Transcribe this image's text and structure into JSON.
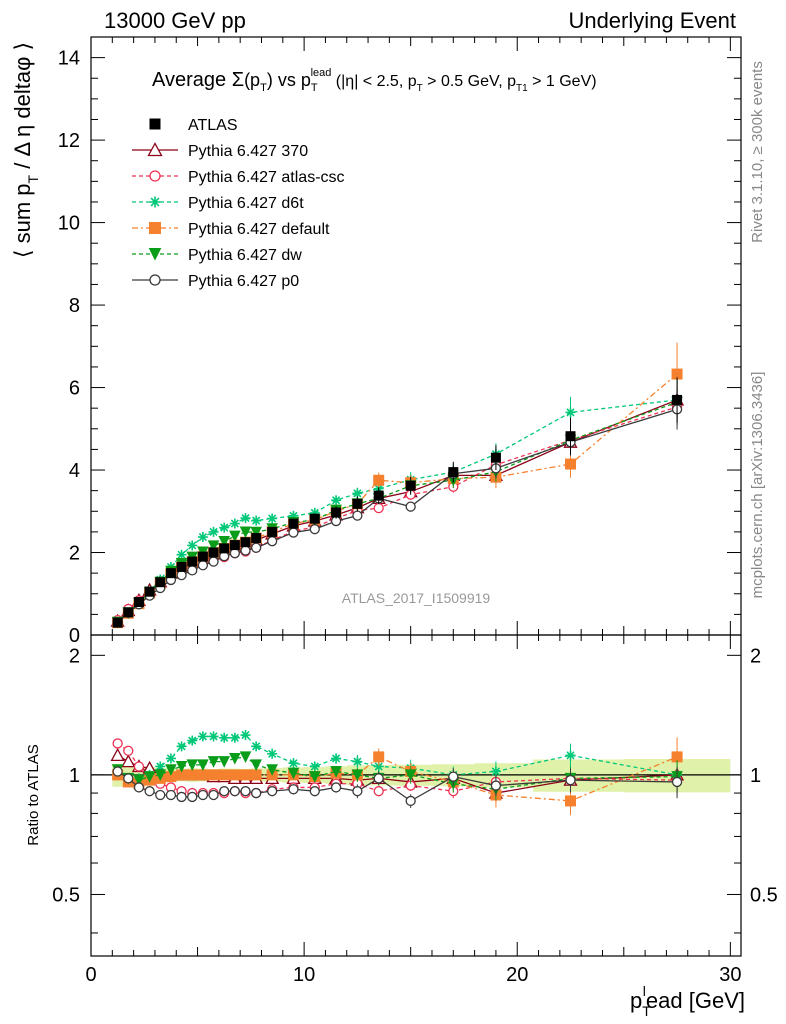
{
  "header": {
    "left": "13000 GeV pp",
    "right": "Underlying Event"
  },
  "side_labels": {
    "rivet": "Rivet 3.1.10, ≥ 300k events",
    "mcplots": "mcplots.cern.ch [arXiv:1306.3436]"
  },
  "chart_data": {
    "type": "line",
    "title": "Average Σ(p_T) vs p_T^lead (|η| < 2.5, p_T > 0.5 GeV, p_T1 > 1 GeV)",
    "title_parts": {
      "pre": "Average ",
      "sigma": "Σ",
      "paren": "(p",
      "sub_T": "T",
      "close": ")",
      "vs": " vs p",
      "sup_lead": "lead",
      "rest1": " (|η| < 2.5, p",
      "rest2": " > 0.5 GeV, p",
      "sub_T1": "T1",
      "rest3": " > 1 GeV)"
    },
    "watermark": "ATLAS_2017_I1509919",
    "xlabel": "p_T^lead [GeV]",
    "xlabel_parts": {
      "p": "p",
      "sub": "T",
      "sup": "l",
      "rest": "ead [GeV]"
    },
    "ylabel": "⟨ sum p_T / Δη deltaφ ⟩",
    "ylabel_parts": {
      "open": "⟨ sum p",
      "sub": "T",
      "rest": " / Δ η deltaφ ⟩"
    },
    "ratio_ylabel": "Ratio to ATLAS",
    "xlim": [
      0,
      30.5
    ],
    "ylim": [
      0,
      14.5
    ],
    "ratio_ylim": [
      0.35,
      2.25
    ],
    "x_ticks": [
      "0",
      "10",
      "20",
      "30"
    ],
    "y_ticks": [
      "0",
      "2",
      "4",
      "6",
      "8",
      "10",
      "12",
      "14"
    ],
    "ratio_ticks": [
      "0.5",
      "1",
      "2"
    ],
    "legend_position": "top-left",
    "x": [
      1.25,
      1.75,
      2.25,
      2.75,
      3.25,
      3.75,
      4.25,
      4.75,
      5.25,
      5.75,
      6.25,
      6.75,
      7.25,
      7.75,
      8.5,
      9.5,
      10.5,
      11.5,
      12.5,
      13.5,
      15.0,
      17.0,
      19.0,
      22.5,
      27.5
    ],
    "data_series": {
      "name": "ATLAS",
      "values": [
        0.3,
        0.55,
        0.8,
        1.05,
        1.28,
        1.5,
        1.65,
        1.78,
        1.9,
        2.0,
        2.1,
        2.18,
        2.25,
        2.35,
        2.5,
        2.7,
        2.82,
        2.97,
        3.18,
        3.38,
        3.62,
        3.95,
        4.3,
        4.82,
        5.7
      ],
      "err": [
        0.02,
        0.03,
        0.04,
        0.05,
        0.05,
        0.06,
        0.06,
        0.07,
        0.07,
        0.07,
        0.08,
        0.08,
        0.08,
        0.09,
        0.1,
        0.12,
        0.13,
        0.15,
        0.18,
        0.2,
        0.22,
        0.25,
        0.3,
        0.45,
        0.55
      ]
    },
    "series": [
      {
        "name": "Pythia 6.427 370",
        "color": "#8b0017",
        "marker": "triangle-open",
        "dash": "",
        "ratio": [
          1.12,
          1.08,
          1.05,
          1.04,
          1.01,
          1.0,
          1.0,
          1.0,
          1.0,
          0.99,
          0.99,
          0.98,
          0.98,
          0.98,
          0.98,
          0.98,
          0.98,
          0.98,
          0.97,
          0.98,
          0.96,
          0.98,
          0.9,
          0.97,
          1.0
        ],
        "err": [
          0.02,
          0.02,
          0.02,
          0.02,
          0.02,
          0.02,
          0.02,
          0.02,
          0.02,
          0.02,
          0.02,
          0.02,
          0.02,
          0.02,
          0.02,
          0.02,
          0.03,
          0.03,
          0.03,
          0.03,
          0.03,
          0.04,
          0.05,
          0.06,
          0.08
        ]
      },
      {
        "name": "Pythia 6.427 atlas-csc",
        "color": "#ee3355",
        "marker": "circle-open",
        "dash": "4,3",
        "ratio": [
          1.2,
          1.15,
          1.05,
          0.97,
          0.95,
          0.93,
          0.91,
          0.9,
          0.9,
          0.9,
          0.9,
          0.91,
          0.9,
          0.9,
          0.92,
          0.93,
          0.93,
          0.95,
          0.95,
          0.91,
          0.94,
          0.91,
          0.96,
          0.98,
          0.97
        ],
        "err": [
          0.02,
          0.02,
          0.02,
          0.02,
          0.02,
          0.02,
          0.02,
          0.02,
          0.02,
          0.02,
          0.02,
          0.02,
          0.02,
          0.02,
          0.02,
          0.02,
          0.03,
          0.03,
          0.03,
          0.03,
          0.03,
          0.04,
          0.05,
          0.06,
          0.08
        ]
      },
      {
        "name": "Pythia 6.427 d6t",
        "color": "#00c878",
        "marker": "star",
        "dash": "4,3",
        "ratio": [
          1.0,
          0.97,
          0.98,
          1.0,
          1.05,
          1.1,
          1.18,
          1.22,
          1.25,
          1.25,
          1.24,
          1.24,
          1.26,
          1.18,
          1.13,
          1.07,
          1.05,
          1.1,
          1.08,
          1.05,
          1.04,
          1.0,
          1.02,
          1.12,
          1.0
        ],
        "err": [
          0.02,
          0.02,
          0.02,
          0.02,
          0.02,
          0.02,
          0.02,
          0.02,
          0.02,
          0.02,
          0.02,
          0.02,
          0.02,
          0.02,
          0.02,
          0.03,
          0.03,
          0.03,
          0.04,
          0.04,
          0.05,
          0.05,
          0.06,
          0.07,
          0.1
        ]
      },
      {
        "name": "Pythia 6.427 default",
        "color": "#f5812f",
        "marker": "square",
        "dash": "6,3,2,3",
        "ratio": [
          1.0,
          0.96,
          0.95,
          0.97,
          0.98,
          0.99,
          1.0,
          1.0,
          1.0,
          1.0,
          1.0,
          1.0,
          1.0,
          1.0,
          1.0,
          1.0,
          0.99,
          1.01,
          1.0,
          1.11,
          1.02,
          0.96,
          0.89,
          0.86,
          1.11
        ],
        "err": [
          0.02,
          0.02,
          0.02,
          0.02,
          0.02,
          0.02,
          0.02,
          0.02,
          0.02,
          0.02,
          0.02,
          0.02,
          0.02,
          0.02,
          0.02,
          0.03,
          0.03,
          0.03,
          0.04,
          0.05,
          0.05,
          0.06,
          0.07,
          0.08,
          0.12
        ]
      },
      {
        "name": "Pythia 6.427 dw",
        "color": "#0a9d1a",
        "marker": "triangle-down",
        "dash": "4,3",
        "ratio": [
          1.03,
          0.98,
          0.97,
          0.99,
          1.0,
          1.03,
          1.05,
          1.06,
          1.06,
          1.08,
          1.08,
          1.1,
          1.11,
          1.06,
          1.03,
          1.01,
          0.99,
          1.02,
          1.0,
          0.98,
          1.0,
          0.95,
          0.92,
          0.98,
          0.99
        ],
        "err": [
          0.02,
          0.02,
          0.02,
          0.02,
          0.02,
          0.02,
          0.02,
          0.02,
          0.02,
          0.02,
          0.02,
          0.02,
          0.02,
          0.02,
          0.02,
          0.03,
          0.03,
          0.03,
          0.04,
          0.04,
          0.05,
          0.05,
          0.06,
          0.07,
          0.1
        ]
      },
      {
        "name": "Pythia 6.427 p0",
        "color": "#3a3a3a",
        "marker": "circle-open",
        "dash": "",
        "ratio": [
          1.02,
          0.98,
          0.93,
          0.91,
          0.89,
          0.89,
          0.88,
          0.88,
          0.89,
          0.89,
          0.91,
          0.91,
          0.91,
          0.9,
          0.91,
          0.92,
          0.91,
          0.93,
          0.91,
          0.98,
          0.86,
          0.99,
          0.94,
          0.97,
          0.96
        ],
        "err": [
          0.02,
          0.02,
          0.02,
          0.02,
          0.02,
          0.02,
          0.02,
          0.02,
          0.02,
          0.02,
          0.02,
          0.02,
          0.02,
          0.02,
          0.02,
          0.03,
          0.03,
          0.03,
          0.04,
          0.04,
          0.04,
          0.05,
          0.06,
          0.07,
          0.09
        ]
      }
    ]
  }
}
